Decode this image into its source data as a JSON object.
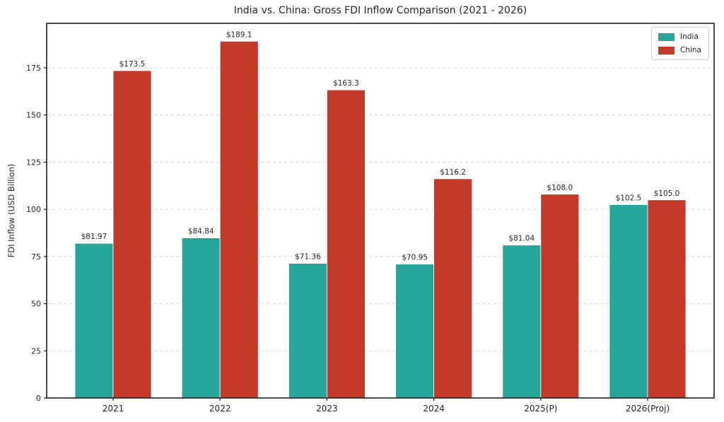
{
  "title": "India vs. China: Gross FDI Inflow Comparison (2021 - 2026)",
  "ylabel": "FDI Inflow (USD Billion)",
  "colors": {
    "india": "#26a69a",
    "china": "#c33a2b",
    "grid": "#d9d9d9",
    "spine": "#1f1f1f",
    "text": "#262626"
  },
  "legend": {
    "position": "upper-right",
    "items": [
      {
        "label": "India",
        "color": "#26a69a"
      },
      {
        "label": "China",
        "color": "#c33a2b"
      }
    ]
  },
  "chart_data": {
    "type": "bar",
    "title": "India vs. China: Gross FDI Inflow Comparison (2021 - 2026)",
    "xlabel": "",
    "ylabel": "FDI Inflow (USD Billion)",
    "categories": [
      "2021",
      "2022",
      "2023",
      "2024",
      "2025(P)",
      "2026(Proj)"
    ],
    "series": [
      {
        "name": "India",
        "color": "#26a69a",
        "values": [
          81.97,
          84.84,
          71.36,
          70.95,
          81.04,
          102.5
        ],
        "labels": [
          "$81.97",
          "$84.84",
          "$71.36",
          "$70.95",
          "$81.04",
          "$102.5"
        ]
      },
      {
        "name": "China",
        "color": "#c33a2b",
        "values": [
          173.5,
          189.1,
          163.3,
          116.2,
          108.0,
          105.0
        ],
        "labels": [
          "$173.5",
          "$189.1",
          "$163.3",
          "$116.2",
          "$108.0",
          "$105.0"
        ]
      }
    ],
    "yticks": [
      0,
      25,
      50,
      75,
      100,
      125,
      150,
      175
    ],
    "ylim": [
      0,
      198.6
    ],
    "grid": "horizontal-dashed",
    "legend_position": "upper-right"
  }
}
